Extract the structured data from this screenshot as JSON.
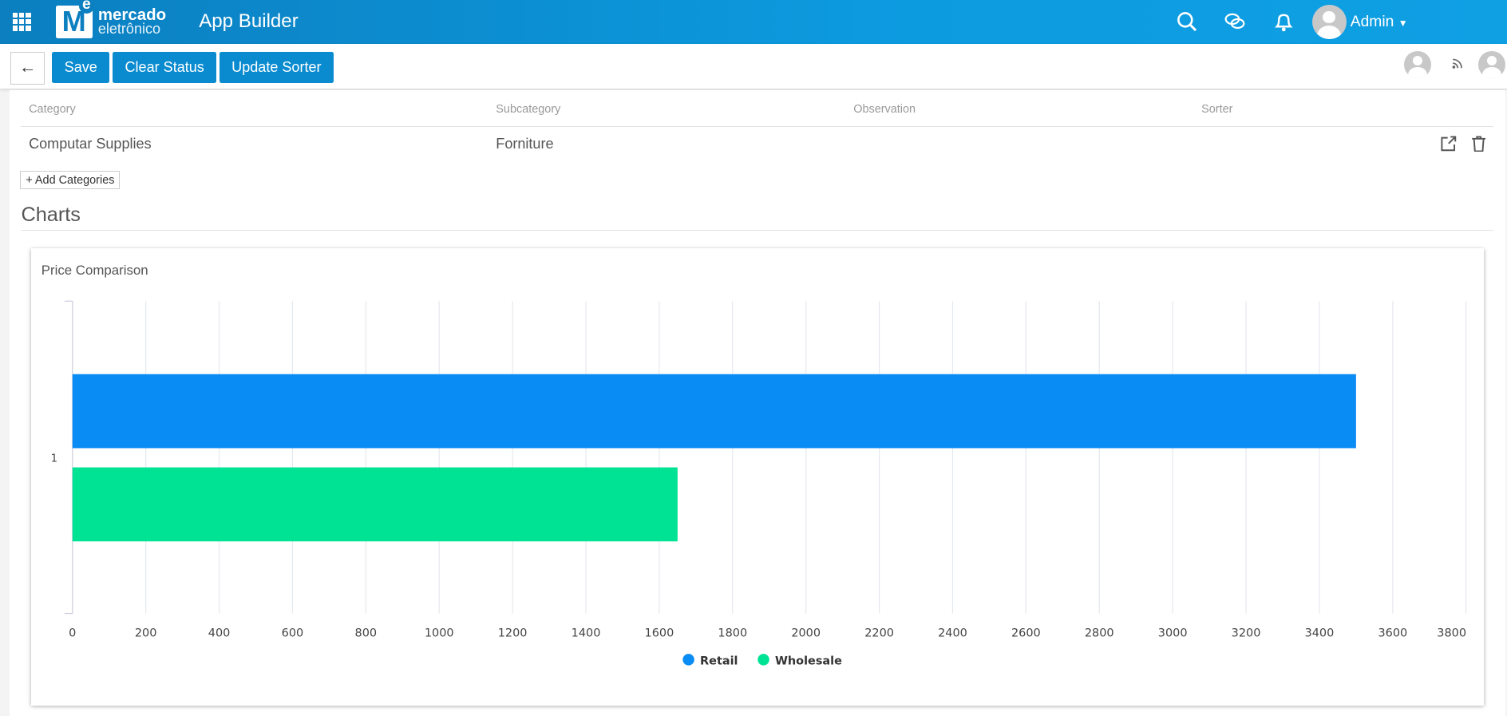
{
  "header": {
    "brand_line1": "mercado",
    "brand_line2": "eletrônico",
    "logo_letter": "M",
    "logo_sup": "e",
    "app_title": "App Builder",
    "user_name": "Admin",
    "icons": [
      "apps-grid-icon",
      "search-icon",
      "chat-icon",
      "bell-icon",
      "avatar"
    ]
  },
  "toolbar": {
    "back_label": "←",
    "save_label": "Save",
    "clear_status_label": "Clear Status",
    "update_sorter_label": "Update Sorter"
  },
  "table": {
    "columns": [
      "Category",
      "Subcategory",
      "Observation",
      "Sorter"
    ],
    "rows": [
      {
        "category": "Computar Supplies",
        "subcategory": "Forniture",
        "observation": "",
        "sorter": ""
      }
    ]
  },
  "add_categories_label": "+ Add Categories",
  "section_title": "Charts",
  "chart_data": {
    "type": "bar",
    "orientation": "horizontal",
    "title": "Price Comparison",
    "categories": [
      "1"
    ],
    "series": [
      {
        "name": "Retail",
        "values": [
          3500
        ],
        "color": "#0a8cf5"
      },
      {
        "name": "Wholesale",
        "values": [
          1650
        ],
        "color": "#00e394"
      }
    ],
    "xlim": [
      0,
      3800
    ],
    "xticks": [
      0,
      200,
      400,
      600,
      800,
      1000,
      1200,
      1400,
      1600,
      1800,
      2000,
      2200,
      2400,
      2600,
      2800,
      3000,
      3200,
      3400,
      3600,
      3800
    ],
    "grid": true,
    "legend": "bottom-center",
    "xlabel": "",
    "ylabel": ""
  }
}
